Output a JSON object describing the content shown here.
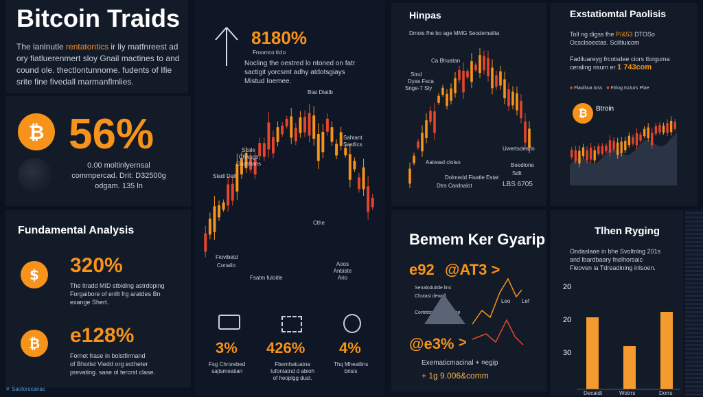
{
  "header": {
    "title": "Bitcoin Traids",
    "intro_prefix": "The lanlnutle ",
    "intro_highlight": "rentatontics",
    "intro_rest_1": " ir liy matfnreest ad",
    "intro_line_2": "ory fiatluerenmert sloy Gnail mactines to and",
    "intro_line_3": "cound ole. thectlontunnome. fudents of Ifie",
    "intro_line_4": "srite fine fivedall marmanflmlies."
  },
  "stat_main": {
    "value": "56%",
    "line1": "0.00 moltinlyernsal",
    "line2": "commpercad. Drit: D32500g",
    "line3": "odgam. 135 ln"
  },
  "center_top": {
    "value": "8180%",
    "sub": "Froomco ticlo",
    "line1": "Nocling the oestred lo ntoned on fatr",
    "line2": "sactigit yorcsmt adhy atdotsgiays",
    "line3": "Mistud Ioemee."
  },
  "center_chart_labels": [
    "Scale Chwsgs Gaastians",
    "Btat Diatlb",
    "Sladl Dall",
    "Sahtant Sastlics",
    "Cthe",
    "Fiovibetd",
    "Conalio",
    "Fsatm fuloitle",
    "Aoos Anbiste Ario"
  ],
  "center_stats": [
    {
      "value": "3%",
      "line1": "Fsg Chrorebed",
      "line2": "sajtsmeatian"
    },
    {
      "value": "426%",
      "line1": "Fbemhatuatna",
      "line2": "Iufontatnd d abioh",
      "line3": "of heoplgg dust."
    },
    {
      "value": "4%",
      "line1": "Thq Mheatlins",
      "line2": "brisis"
    }
  ],
  "hinpas": {
    "title": "Hinpas",
    "sub": "Dmois fhe bo age MMG Seodemalita",
    "labels": [
      "Stnd",
      "Dyas Fsca",
      "Snge-7 Sly",
      "Ca Bhuatan",
      "Uwertsdeatlo",
      "Aatwasl cloiso",
      "Beedlone",
      "Sdlt",
      "Dolmedd Fisatle Estat",
      "Dtrs Cardnalot",
      "LBS 6705"
    ]
  },
  "exstat": {
    "title": "Exstatiomtal Paolisis",
    "line1_prefix": "Toll ng digss fhe ",
    "line1_hl": "P/&53",
    "line1_rest": " DTOSo",
    "line2": "Ocsclsoectas. Sciltiuicom",
    "line3": "Fadiluareyg frcotsdee ciors tlorguma",
    "line4_prefix": "ceraling nsum er ",
    "line4_hl": "1 743com",
    "legend1": "Flaulitua toss",
    "legend2": "Flrlog Iscturs Plae",
    "coin_label": "Btroin"
  },
  "fundamental": {
    "title": "Fundamental Analysis",
    "items": [
      {
        "value": "320%",
        "line1": "The ltradd MID stbiding astrdoping",
        "line2": "Forgaibore of enllt frg aratdes Bn",
        "line3": "exange Shert."
      },
      {
        "value": "e128%",
        "line1": "Fornet frase in bolstfirmand",
        "line2": "of Bhotist Viedd org ectheter",
        "line3": "prevating. sase ol tercrst clase."
      }
    ]
  },
  "bemem": {
    "title": "Bemem Ker Gyarip",
    "v1": "e92",
    "v2": "@AT3 >",
    "v3": "@e3%",
    "legend": [
      "Senaloduitde lins",
      "Chutasl dewnll",
      "Cortetorssnay Oneee"
    ],
    "tick1": "Leo",
    "tick2": "Lef",
    "foot1": "Exematicmacinal + ¤egip",
    "foot2": "+ 1g 9.006&comm"
  },
  "thien": {
    "title": "Tlhen Ryging",
    "line1": "Ondaslaoe in bhe Svoltnlng 201s",
    "line2": "and lbardbaary fnelhorsaic",
    "line3": "Fleoven ia Tdreadining inlsoen.",
    "yticks": [
      "20",
      "20",
      "30"
    ],
    "categories": [
      "Decaldt",
      "Wotrrs",
      "Dorrs"
    ]
  },
  "footer": {
    "brand": "Saotorscanac"
  },
  "chart_data": {
    "type": "bar",
    "title": "Tlhen Ryging",
    "categories": [
      "Decaldt",
      "Wotrrs",
      "Dorrs"
    ],
    "values": [
      25,
      15,
      27
    ]
  },
  "colors": {
    "accent": "#f7931a",
    "down": "#e5462b",
    "panel": "#131b29",
    "bg": "#0b1220"
  }
}
